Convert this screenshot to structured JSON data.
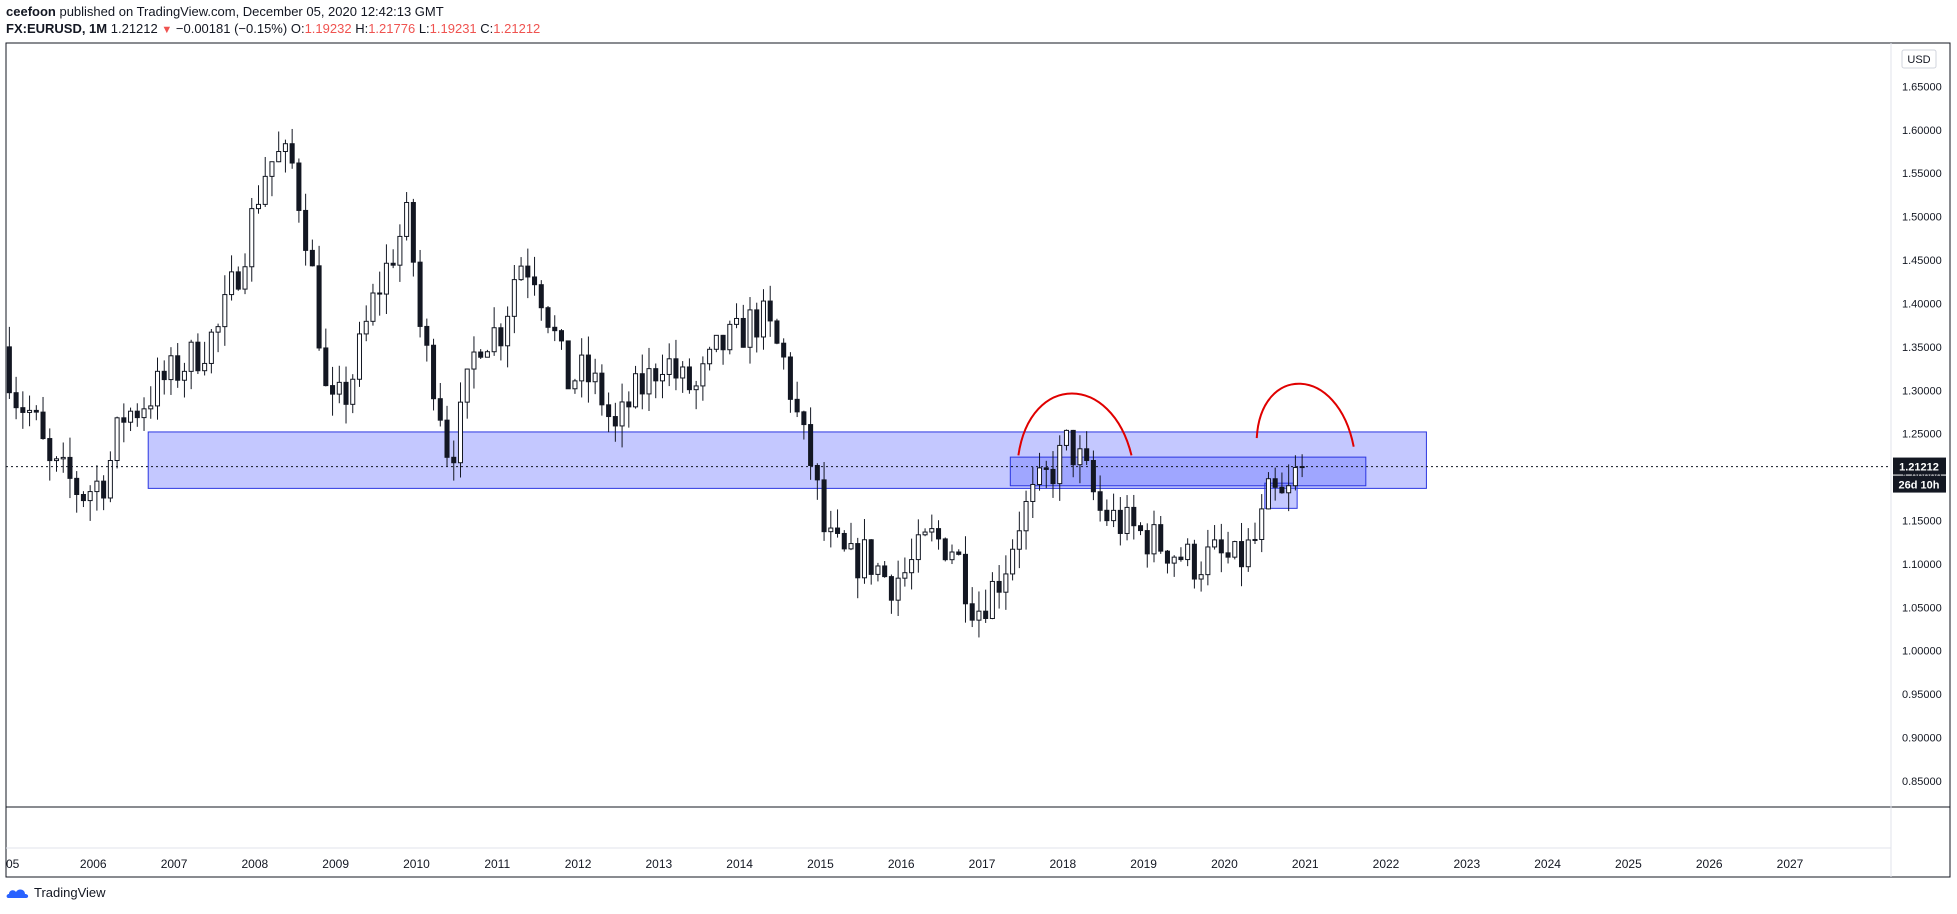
{
  "header": {
    "author": "ceefoon",
    "published_text": "published on TradingView.com, December 05, 2020 12:42:13 GMT",
    "symbol": "FX:EURUSD, 1M",
    "last": "1.21212",
    "change": "−0.00181 (−0.15%)",
    "o_label": "O:",
    "o_value": "1.19232",
    "h_label": "H:",
    "h_value": "1.21776",
    "l_label": "L:",
    "l_value": "1.19231",
    "c_label": "C:",
    "c_value": "1.21212"
  },
  "footer": {
    "brand": "TradingView"
  },
  "colors": {
    "up_body": "#ffffff",
    "down_body": "#131722",
    "wick": "#131722",
    "zone_fill": "rgba(100,110,255,0.38)",
    "zone_stroke": "#2b36e0",
    "arc": "#e00000",
    "price_badge": "#131722"
  },
  "chart_data": {
    "type": "candlestick",
    "symbol": "FX:EURUSD",
    "interval": "1M",
    "currency_label": "USD",
    "y_ticks": [
      "1.65000",
      "1.60000",
      "1.55000",
      "1.50000",
      "1.45000",
      "1.40000",
      "1.35000",
      "1.30000",
      "1.25000",
      "1.20000",
      "1.15000",
      "1.10000",
      "1.05000",
      "1.00000",
      "0.95000",
      "0.90000",
      "0.85000"
    ],
    "y_tick_values": [
      1.65,
      1.6,
      1.55,
      1.5,
      1.45,
      1.4,
      1.35,
      1.3,
      1.25,
      1.2,
      1.15,
      1.1,
      1.05,
      1.0,
      0.95,
      0.9,
      0.85
    ],
    "ylim": [
      0.82,
      1.7
    ],
    "x_ticks": [
      "05",
      "2006",
      "2007",
      "2008",
      "2009",
      "2010",
      "2011",
      "2012",
      "2013",
      "2014",
      "2015",
      "2016",
      "2017",
      "2018",
      "2019",
      "2020",
      "2021",
      "2022",
      "2023",
      "2024",
      "2025",
      "2026",
      "2027"
    ],
    "x_tick_years": [
      2005,
      2006,
      2007,
      2008,
      2009,
      2010,
      2011,
      2012,
      2013,
      2014,
      2015,
      2016,
      2017,
      2018,
      2019,
      2020,
      2021,
      2022,
      2023,
      2024,
      2025,
      2026,
      2027
    ],
    "xlim": [
      2004.92,
      2028.25
    ],
    "last_price_label": "1.21212",
    "last_price": 1.21212,
    "countdown_label": "26d 10h",
    "anchors": [
      [
        2004.92,
        1.35
      ],
      [
        2005.1,
        1.29
      ],
      [
        2005.3,
        1.27
      ],
      [
        2005.5,
        1.21
      ],
      [
        2005.7,
        1.2
      ],
      [
        2005.9,
        1.18
      ],
      [
        2006.2,
        1.2
      ],
      [
        2006.4,
        1.27
      ],
      [
        2006.6,
        1.28
      ],
      [
        2006.9,
        1.31
      ],
      [
        2007.3,
        1.34
      ],
      [
        2007.6,
        1.37
      ],
      [
        2007.9,
        1.46
      ],
      [
        2008.15,
        1.55
      ],
      [
        2008.3,
        1.57
      ],
      [
        2008.5,
        1.56
      ],
      [
        2008.7,
        1.47
      ],
      [
        2008.8,
        1.4
      ],
      [
        2008.95,
        1.27
      ],
      [
        2009.2,
        1.3
      ],
      [
        2009.5,
        1.4
      ],
      [
        2009.8,
        1.47
      ],
      [
        2009.95,
        1.5
      ],
      [
        2010.1,
        1.36
      ],
      [
        2010.3,
        1.3
      ],
      [
        2010.45,
        1.22
      ],
      [
        2010.6,
        1.27
      ],
      [
        2010.8,
        1.36
      ],
      [
        2011.1,
        1.37
      ],
      [
        2011.3,
        1.45
      ],
      [
        2011.5,
        1.44
      ],
      [
        2011.7,
        1.38
      ],
      [
        2011.9,
        1.31
      ],
      [
        2012.1,
        1.32
      ],
      [
        2012.3,
        1.3
      ],
      [
        2012.5,
        1.25
      ],
      [
        2012.7,
        1.29
      ],
      [
        2012.9,
        1.31
      ],
      [
        2013.1,
        1.34
      ],
      [
        2013.3,
        1.31
      ],
      [
        2013.5,
        1.3
      ],
      [
        2013.8,
        1.35
      ],
      [
        2014.0,
        1.36
      ],
      [
        2014.2,
        1.38
      ],
      [
        2014.35,
        1.38
      ],
      [
        2014.6,
        1.33
      ],
      [
        2014.8,
        1.25
      ],
      [
        2014.95,
        1.21
      ],
      [
        2015.1,
        1.13
      ],
      [
        2015.4,
        1.1
      ],
      [
        2015.6,
        1.11
      ],
      [
        2015.9,
        1.08
      ],
      [
        2016.1,
        1.09
      ],
      [
        2016.4,
        1.13
      ],
      [
        2016.7,
        1.12
      ],
      [
        2016.9,
        1.06
      ],
      [
        2017.0,
        1.05
      ],
      [
        2017.3,
        1.09
      ],
      [
        2017.5,
        1.15
      ],
      [
        2017.7,
        1.18
      ],
      [
        2018.0,
        1.22
      ],
      [
        2018.1,
        1.24
      ],
      [
        2018.3,
        1.21
      ],
      [
        2018.5,
        1.16
      ],
      [
        2018.9,
        1.14
      ],
      [
        2019.3,
        1.12
      ],
      [
        2019.7,
        1.1
      ],
      [
        2019.9,
        1.11
      ],
      [
        2020.2,
        1.1
      ],
      [
        2020.45,
        1.13
      ],
      [
        2020.6,
        1.18
      ],
      [
        2020.8,
        1.17
      ],
      [
        2020.95,
        1.21
      ]
    ],
    "zones": [
      {
        "name": "long-term-zone",
        "x0": 2006.68,
        "x1": 2022.5,
        "y0": 1.187,
        "y1": 1.252
      },
      {
        "name": "upper-zone",
        "x0": 2017.35,
        "x1": 2021.75,
        "y0": 1.19,
        "y1": 1.223
      },
      {
        "name": "small-zone",
        "x0": 2020.5,
        "x1": 2020.9,
        "y0": 1.164,
        "y1": 1.193
      }
    ],
    "arcs": [
      {
        "name": "arc-2018",
        "start": [
          2017.45,
          1.225
        ],
        "c1": [
          2017.6,
          1.32
        ],
        "c2": [
          2018.6,
          1.32
        ],
        "end": [
          2018.85,
          1.225
        ]
      },
      {
        "name": "arc-2021",
        "start": [
          2020.4,
          1.245
        ],
        "c1": [
          2020.45,
          1.33
        ],
        "c2": [
          2021.4,
          1.33
        ],
        "end": [
          2021.6,
          1.235
        ]
      }
    ]
  }
}
